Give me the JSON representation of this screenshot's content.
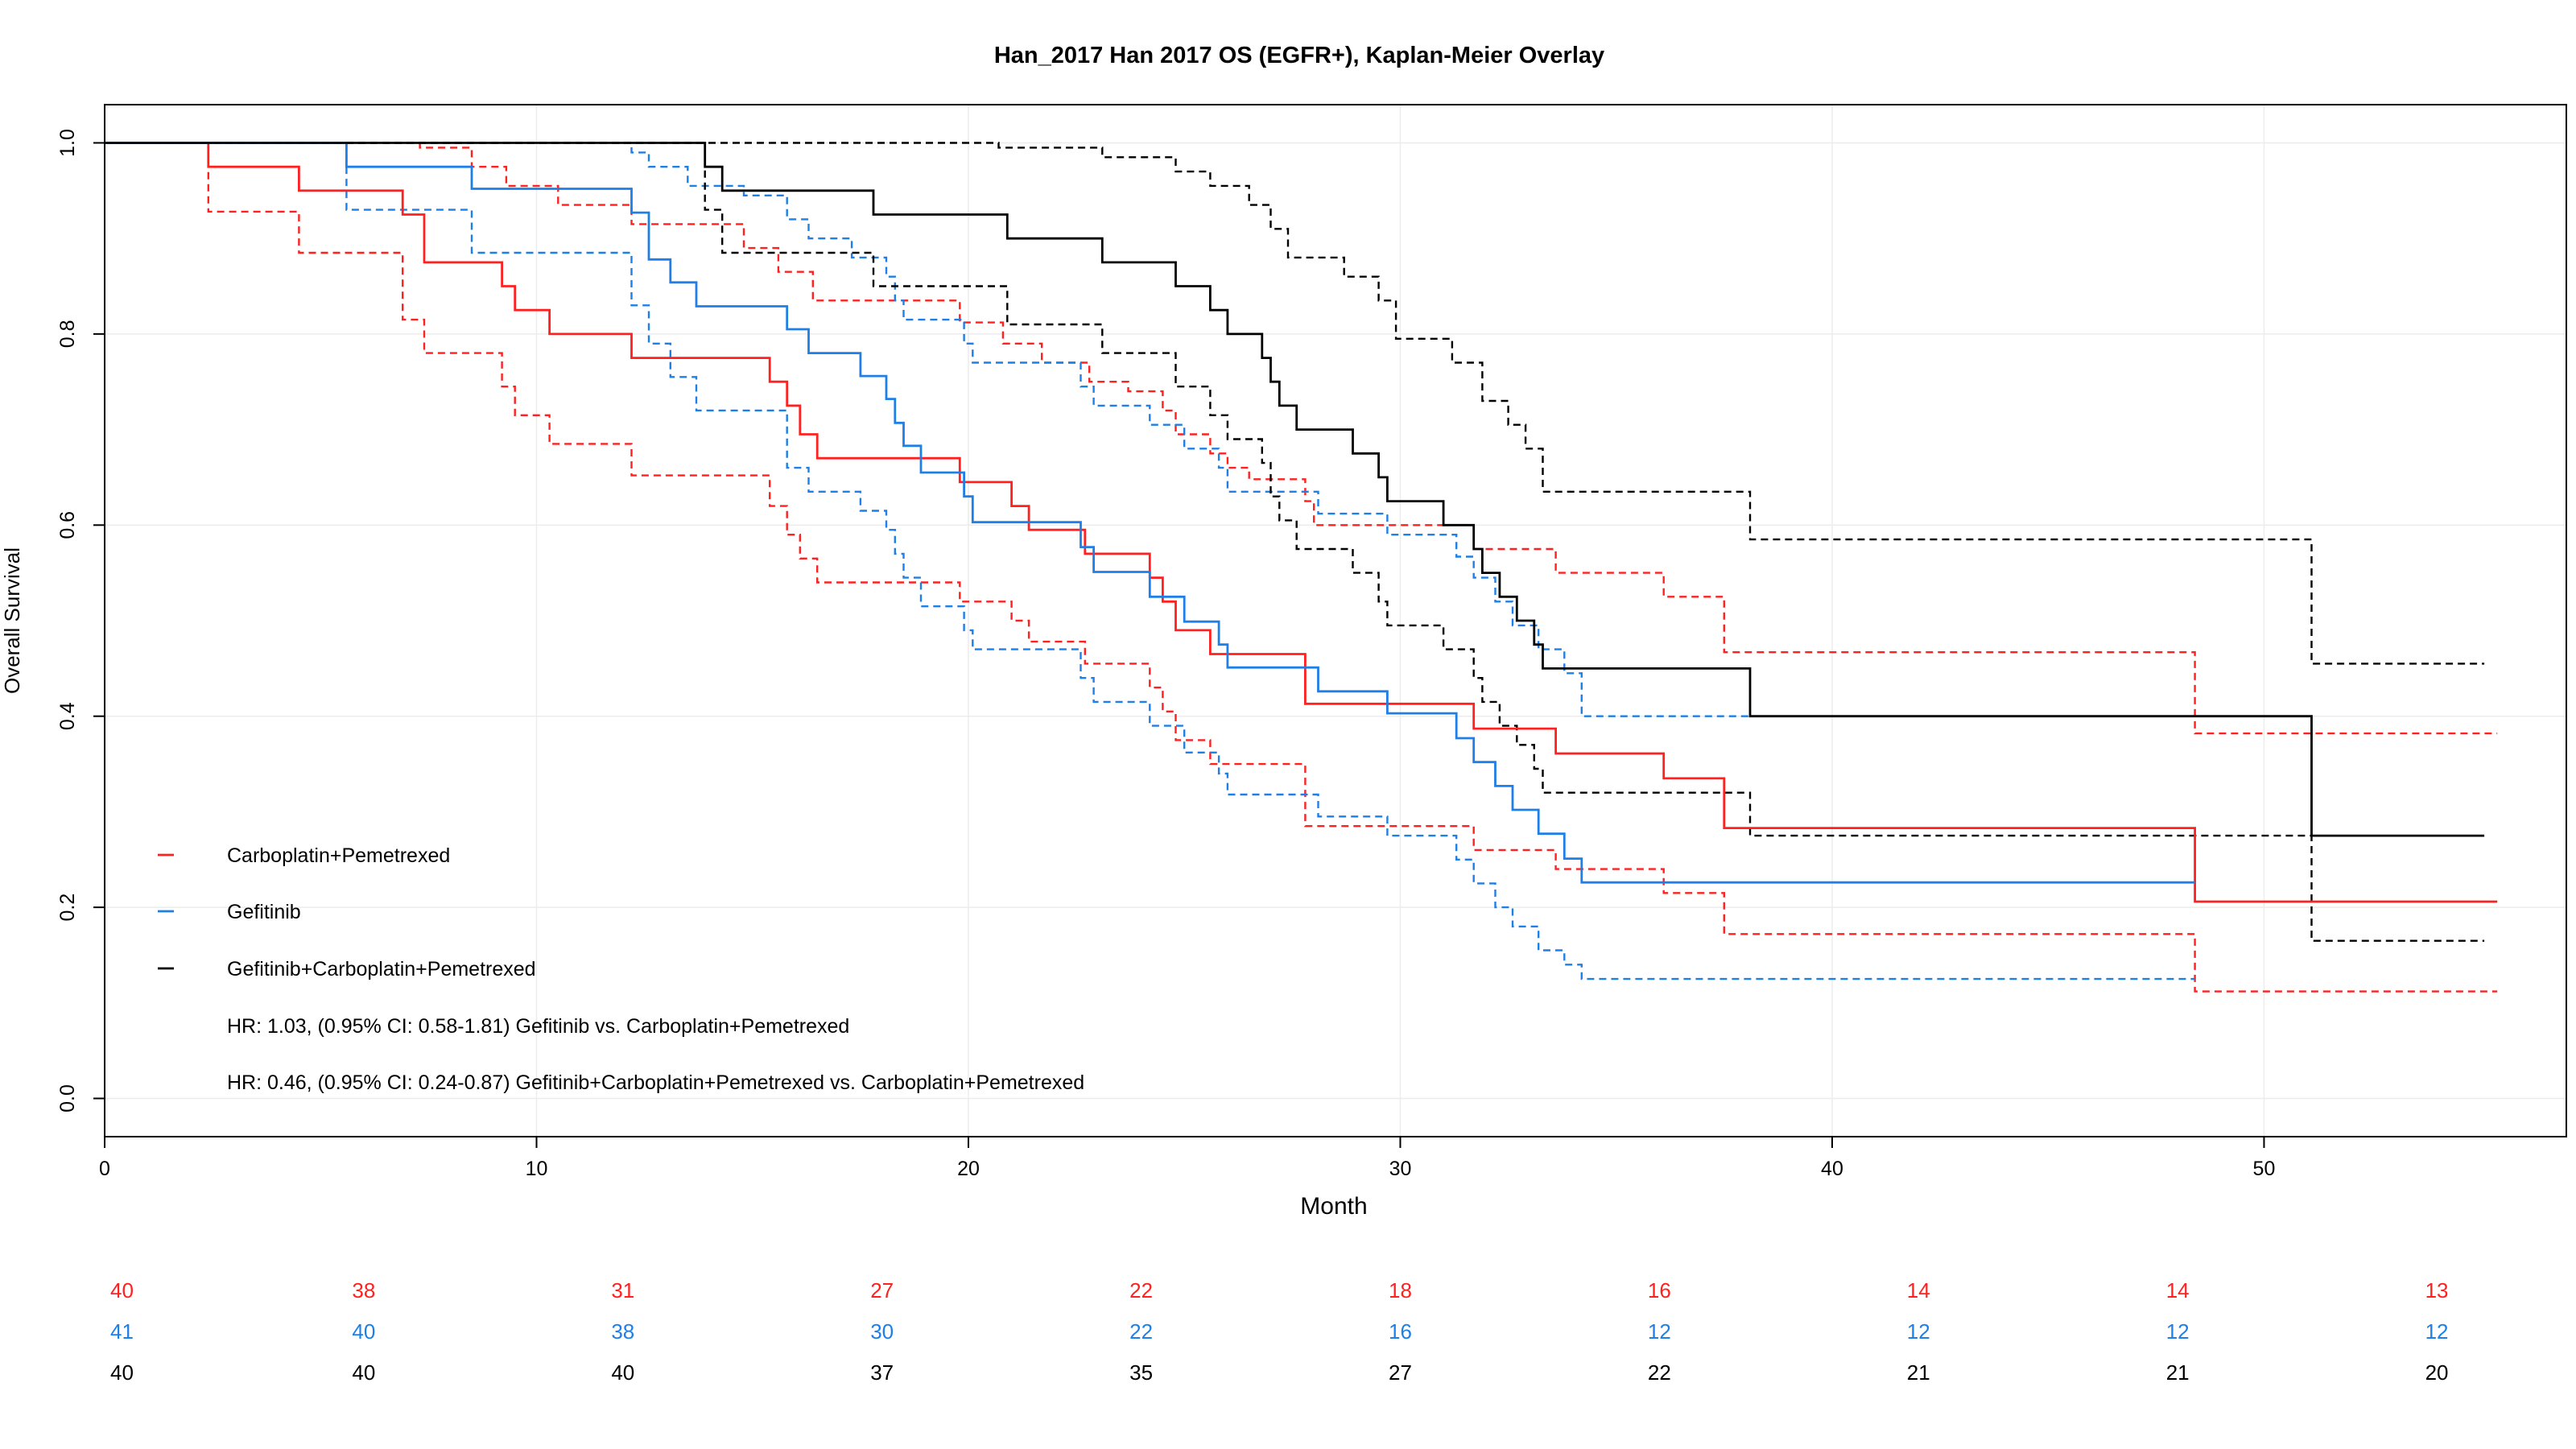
{
  "chart_data": {
    "type": "line",
    "subtype": "kaplan-meier",
    "title": "Han_2017 Han 2017 OS (EGFR+), Kaplan-Meier Overlay",
    "xlabel": "Month",
    "ylabel": "Overall Survival",
    "xlim": [
      0,
      57
    ],
    "ylim": [
      -0.04,
      1.04
    ],
    "x_ticks": [
      0,
      10,
      20,
      30,
      40,
      50
    ],
    "y_ticks": [
      0.0,
      0.2,
      0.4,
      0.6,
      0.8,
      1.0
    ],
    "x_tick_labels": [
      "0",
      "10",
      "20",
      "30",
      "40",
      "50"
    ],
    "y_tick_labels": [
      "0.0",
      "0.2",
      "0.4",
      "0.6",
      "0.8",
      "1.0"
    ],
    "grid": true,
    "legend_position": "bottom-left",
    "series": [
      {
        "name": "Carboplatin+Pemetrexed",
        "color": "#ff2020",
        "survival": [
          [
            0,
            1.0
          ],
          [
            2.4,
            0.975
          ],
          [
            4.5,
            0.95
          ],
          [
            6.9,
            0.925
          ],
          [
            7.4,
            0.875
          ],
          [
            9.2,
            0.85
          ],
          [
            9.5,
            0.825
          ],
          [
            10.3,
            0.8
          ],
          [
            12.2,
            0.775
          ],
          [
            15.4,
            0.75
          ],
          [
            15.8,
            0.725
          ],
          [
            16.1,
            0.695
          ],
          [
            16.5,
            0.67
          ],
          [
            19.8,
            0.645
          ],
          [
            21,
            0.62
          ],
          [
            21.4,
            0.595
          ],
          [
            22.7,
            0.57
          ],
          [
            24.2,
            0.545
          ],
          [
            24.5,
            0.52
          ],
          [
            24.8,
            0.49
          ],
          [
            25.6,
            0.465
          ],
          [
            27.8,
            0.413
          ],
          [
            31.7,
            0.387
          ],
          [
            33.6,
            0.361
          ],
          [
            36.1,
            0.335
          ],
          [
            37.5,
            0.283
          ],
          [
            48.4,
            0.206
          ],
          [
            55.4,
            0.206
          ]
        ],
        "ci_upper": [
          [
            0,
            1.0
          ],
          [
            7.3,
            0.995
          ],
          [
            8.5,
            0.975
          ],
          [
            9.3,
            0.955
          ],
          [
            10.5,
            0.935
          ],
          [
            12.2,
            0.915
          ],
          [
            14.8,
            0.89
          ],
          [
            15.6,
            0.865
          ],
          [
            16.4,
            0.835
          ],
          [
            19.8,
            0.812
          ],
          [
            20.8,
            0.79
          ],
          [
            21.7,
            0.77
          ],
          [
            22.8,
            0.75
          ],
          [
            23.7,
            0.74
          ],
          [
            24.5,
            0.72
          ],
          [
            24.8,
            0.695
          ],
          [
            25.6,
            0.675
          ],
          [
            26,
            0.66
          ],
          [
            26.5,
            0.648
          ],
          [
            27.8,
            0.625
          ],
          [
            28,
            0.6
          ],
          [
            31.7,
            0.575
          ],
          [
            33.6,
            0.55
          ],
          [
            36.1,
            0.525
          ],
          [
            37.5,
            0.467
          ],
          [
            48.4,
            0.382
          ],
          [
            55.4,
            0.382
          ]
        ],
        "ci_lower": [
          [
            0,
            1.0
          ],
          [
            2.4,
            0.928
          ],
          [
            4.5,
            0.885
          ],
          [
            6.9,
            0.815
          ],
          [
            7.4,
            0.78
          ],
          [
            9.2,
            0.745
          ],
          [
            9.5,
            0.715
          ],
          [
            10.3,
            0.685
          ],
          [
            12.2,
            0.652
          ],
          [
            15.4,
            0.62
          ],
          [
            15.8,
            0.59
          ],
          [
            16.1,
            0.565
          ],
          [
            16.5,
            0.54
          ],
          [
            19.8,
            0.52
          ],
          [
            21,
            0.5
          ],
          [
            21.4,
            0.478
          ],
          [
            22.7,
            0.455
          ],
          [
            24.2,
            0.43
          ],
          [
            24.5,
            0.405
          ],
          [
            24.8,
            0.375
          ],
          [
            25.6,
            0.35
          ],
          [
            27.8,
            0.285
          ],
          [
            31.7,
            0.26
          ],
          [
            33.6,
            0.24
          ],
          [
            36.1,
            0.215
          ],
          [
            37.5,
            0.172
          ],
          [
            48.4,
            0.112
          ],
          [
            55.4,
            0.112
          ]
        ],
        "at_risk": [
          40,
          38,
          31,
          27,
          22,
          18,
          16,
          14,
          14,
          13
        ]
      },
      {
        "name": "Gefitinib",
        "color": "#1e7fe6",
        "survival": [
          [
            0,
            1.0
          ],
          [
            5.6,
            0.975
          ],
          [
            8.5,
            0.952
          ],
          [
            12.2,
            0.927
          ],
          [
            12.6,
            0.878
          ],
          [
            13.1,
            0.854
          ],
          [
            13.7,
            0.829
          ],
          [
            15.8,
            0.805
          ],
          [
            16.3,
            0.78
          ],
          [
            17.5,
            0.756
          ],
          [
            18.1,
            0.732
          ],
          [
            18.3,
            0.707
          ],
          [
            18.5,
            0.683
          ],
          [
            18.9,
            0.655
          ],
          [
            19.9,
            0.63
          ],
          [
            20.1,
            0.603
          ],
          [
            22.6,
            0.577
          ],
          [
            22.9,
            0.551
          ],
          [
            24.2,
            0.525
          ],
          [
            25,
            0.499
          ],
          [
            25.8,
            0.475
          ],
          [
            26,
            0.451
          ],
          [
            28.1,
            0.426
          ],
          [
            29.7,
            0.403
          ],
          [
            31.3,
            0.377
          ],
          [
            31.7,
            0.352
          ],
          [
            32.2,
            0.327
          ],
          [
            32.6,
            0.302
          ],
          [
            33.2,
            0.277
          ],
          [
            33.8,
            0.251
          ],
          [
            34.2,
            0.226
          ],
          [
            48.4,
            0.226
          ]
        ],
        "ci_upper": [
          [
            0,
            1.0
          ],
          [
            12.2,
            0.99
          ],
          [
            12.6,
            0.975
          ],
          [
            13.5,
            0.955
          ],
          [
            14.8,
            0.945
          ],
          [
            15.8,
            0.92
          ],
          [
            16.3,
            0.9
          ],
          [
            17.3,
            0.88
          ],
          [
            18.1,
            0.86
          ],
          [
            18.3,
            0.835
          ],
          [
            18.5,
            0.815
          ],
          [
            19.9,
            0.79
          ],
          [
            20.1,
            0.77
          ],
          [
            22.6,
            0.745
          ],
          [
            22.9,
            0.725
          ],
          [
            24.2,
            0.705
          ],
          [
            25,
            0.68
          ],
          [
            25.8,
            0.66
          ],
          [
            26,
            0.635
          ],
          [
            28.1,
            0.612
          ],
          [
            29.7,
            0.59
          ],
          [
            31.3,
            0.567
          ],
          [
            31.7,
            0.545
          ],
          [
            32.2,
            0.52
          ],
          [
            32.6,
            0.495
          ],
          [
            33.2,
            0.47
          ],
          [
            33.8,
            0.445
          ],
          [
            34.2,
            0.4
          ],
          [
            48.4,
            0.4
          ]
        ],
        "ci_lower": [
          [
            0,
            1.0
          ],
          [
            5.6,
            0.93
          ],
          [
            8.5,
            0.885
          ],
          [
            12.2,
            0.83
          ],
          [
            12.6,
            0.79
          ],
          [
            13.1,
            0.755
          ],
          [
            13.7,
            0.72
          ],
          [
            15.8,
            0.66
          ],
          [
            16.3,
            0.635
          ],
          [
            17.5,
            0.615
          ],
          [
            18.1,
            0.595
          ],
          [
            18.3,
            0.57
          ],
          [
            18.5,
            0.545
          ],
          [
            18.9,
            0.515
          ],
          [
            19.9,
            0.49
          ],
          [
            20.1,
            0.47
          ],
          [
            22.6,
            0.44
          ],
          [
            22.9,
            0.415
          ],
          [
            24.2,
            0.39
          ],
          [
            25,
            0.362
          ],
          [
            25.8,
            0.34
          ],
          [
            26,
            0.318
          ],
          [
            28.1,
            0.295
          ],
          [
            29.7,
            0.275
          ],
          [
            31.3,
            0.25
          ],
          [
            31.7,
            0.225
          ],
          [
            32.2,
            0.2
          ],
          [
            32.6,
            0.18
          ],
          [
            33.2,
            0.155
          ],
          [
            33.8,
            0.14
          ],
          [
            34.2,
            0.125
          ],
          [
            48.4,
            0.125
          ]
        ],
        "at_risk": [
          41,
          40,
          38,
          30,
          22,
          16,
          12,
          12,
          12,
          12
        ]
      },
      {
        "name": "Gefitinib+Carboplatin+Pemetrexed",
        "color": "#000000",
        "survival": [
          [
            0,
            1.0
          ],
          [
            13.9,
            0.975
          ],
          [
            14.3,
            0.95
          ],
          [
            17.8,
            0.925
          ],
          [
            20.9,
            0.9
          ],
          [
            23.1,
            0.875
          ],
          [
            24.8,
            0.85
          ],
          [
            25.6,
            0.825
          ],
          [
            26,
            0.8
          ],
          [
            26.8,
            0.775
          ],
          [
            27.0,
            0.75
          ],
          [
            27.2,
            0.725
          ],
          [
            27.6,
            0.7
          ],
          [
            28.9,
            0.675
          ],
          [
            29.5,
            0.65
          ],
          [
            29.7,
            0.625
          ],
          [
            31,
            0.6
          ],
          [
            31.7,
            0.575
          ],
          [
            31.9,
            0.55
          ],
          [
            32.3,
            0.525
          ],
          [
            32.7,
            0.5
          ],
          [
            33.1,
            0.475
          ],
          [
            33.3,
            0.45
          ],
          [
            38.1,
            0.4
          ],
          [
            51.1,
            0.275
          ],
          [
            55.1,
            0.275
          ]
        ],
        "ci_upper": [
          [
            0,
            1.0
          ],
          [
            20.7,
            0.995
          ],
          [
            23.1,
            0.985
          ],
          [
            24.8,
            0.97
          ],
          [
            25.6,
            0.955
          ],
          [
            26.5,
            0.935
          ],
          [
            27.0,
            0.91
          ],
          [
            27.4,
            0.88
          ],
          [
            28.7,
            0.86
          ],
          [
            29.5,
            0.835
          ],
          [
            29.9,
            0.795
          ],
          [
            31.2,
            0.77
          ],
          [
            31.9,
            0.73
          ],
          [
            32.5,
            0.705
          ],
          [
            32.9,
            0.68
          ],
          [
            33.3,
            0.635
          ],
          [
            38.1,
            0.585
          ],
          [
            51.1,
            0.455
          ],
          [
            55.1,
            0.455
          ]
        ],
        "ci_lower": [
          [
            0,
            1.0
          ],
          [
            13.9,
            0.93
          ],
          [
            14.3,
            0.885
          ],
          [
            17.8,
            0.85
          ],
          [
            20.9,
            0.81
          ],
          [
            23.1,
            0.78
          ],
          [
            24.8,
            0.745
          ],
          [
            25.6,
            0.715
          ],
          [
            26,
            0.69
          ],
          [
            26.8,
            0.665
          ],
          [
            27.0,
            0.63
          ],
          [
            27.2,
            0.605
          ],
          [
            27.6,
            0.575
          ],
          [
            28.9,
            0.55
          ],
          [
            29.5,
            0.52
          ],
          [
            29.7,
            0.495
          ],
          [
            31,
            0.47
          ],
          [
            31.7,
            0.44
          ],
          [
            31.9,
            0.415
          ],
          [
            32.3,
            0.39
          ],
          [
            32.7,
            0.37
          ],
          [
            33.1,
            0.345
          ],
          [
            33.3,
            0.32
          ],
          [
            38.1,
            0.275
          ],
          [
            51.1,
            0.165
          ],
          [
            55.1,
            0.165
          ]
        ],
        "at_risk": [
          40,
          40,
          40,
          37,
          35,
          27,
          22,
          21,
          21,
          20
        ]
      }
    ],
    "risk_table_times": [
      0.4,
      6,
      12,
      18,
      24,
      30,
      36,
      42,
      48,
      54
    ],
    "annotations": [
      "HR: 1.03, (0.95% CI: 0.58-1.81) Gefitinib vs. Carboplatin+Pemetrexed",
      "HR: 0.46, (0.95% CI: 0.24-0.87) Gefitinib+Carboplatin+Pemetrexed vs. Carboplatin+Pemetrexed"
    ]
  }
}
